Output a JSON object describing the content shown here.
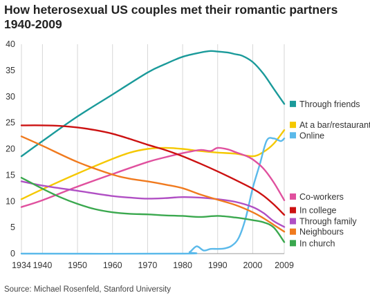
{
  "chart_data": {
    "type": "line",
    "title": "How heterosexual US couples met their romantic partners 1940-2009",
    "source": "Source: Michael Rosenfeld, Stanford University",
    "xlabel": "",
    "ylabel": "",
    "xlim": [
      1934,
      2009
    ],
    "ylim": [
      0,
      40
    ],
    "x_ticks": [
      1934,
      1940,
      1950,
      1960,
      1970,
      1980,
      1990,
      2000,
      2009
    ],
    "y_ticks": [
      0,
      5,
      10,
      15,
      20,
      25,
      30,
      35,
      40
    ],
    "grid": "vertical gridlines at x ticks",
    "legend": "right, labels beside line ends",
    "series": [
      {
        "name": "Through friends",
        "color": "#1a9a9a",
        "x": [
          1934,
          1940,
          1950,
          1960,
          1970,
          1975,
          1980,
          1985,
          1988,
          1990,
          1993,
          1995,
          1997,
          2000,
          2003,
          2006,
          2009
        ],
        "y": [
          18.6,
          21.5,
          26.2,
          30.4,
          34.6,
          36.2,
          37.6,
          38.4,
          38.7,
          38.6,
          38.4,
          38.1,
          37.8,
          36.6,
          34.4,
          31.5,
          28.6
        ]
      },
      {
        "name": "At a bar/restaurant",
        "color": "#f5c800",
        "x": [
          1934,
          1940,
          1950,
          1960,
          1965,
          1970,
          1975,
          1980,
          1985,
          1990,
          1995,
          2000,
          2003,
          2006,
          2009
        ],
        "y": [
          10.4,
          12.3,
          15.3,
          18.1,
          19.3,
          20.0,
          20.2,
          20.0,
          19.6,
          19.3,
          19.1,
          18.6,
          19.4,
          21.0,
          23.6
        ]
      },
      {
        "name": "Online",
        "color": "#5ab9ea",
        "x": [
          1934,
          1980,
          1982,
          1984,
          1986,
          1988,
          1990,
          1992,
          1994,
          1996,
          1998,
          2000,
          2002,
          2004,
          2006,
          2008,
          2009
        ],
        "y": [
          0,
          0,
          0.3,
          1.4,
          0.6,
          0.9,
          0.9,
          1.0,
          1.5,
          3.0,
          6.8,
          12.5,
          17.0,
          21.6,
          22.0,
          21.5,
          22.0
        ]
      },
      {
        "name": "Co-workers",
        "color": "#e0509e",
        "x": [
          1934,
          1940,
          1950,
          1960,
          1970,
          1975,
          1980,
          1985,
          1988,
          1990,
          1993,
          1995,
          1998,
          2000,
          2003,
          2006,
          2009
        ],
        "y": [
          8.9,
          10.2,
          12.8,
          15.2,
          17.5,
          18.4,
          19.2,
          19.8,
          19.6,
          20.2,
          19.9,
          19.4,
          18.7,
          18.0,
          16.3,
          13.6,
          10.2
        ]
      },
      {
        "name": "In college",
        "color": "#cc1111",
        "x": [
          1934,
          1940,
          1945,
          1950,
          1955,
          1960,
          1965,
          1970,
          1975,
          1980,
          1985,
          1990,
          1995,
          2000,
          2003,
          2006,
          2009
        ],
        "y": [
          24.5,
          24.5,
          24.4,
          24.1,
          23.6,
          22.9,
          21.9,
          20.8,
          19.8,
          18.6,
          17.2,
          15.7,
          14.1,
          12.4,
          11.1,
          9.4,
          7.4
        ]
      },
      {
        "name": "Through family",
        "color": "#b04fc4",
        "x": [
          1934,
          1940,
          1950,
          1960,
          1965,
          1970,
          1975,
          1980,
          1985,
          1990,
          1995,
          2000,
          2003,
          2006,
          2009
        ],
        "y": [
          13.8,
          13.0,
          12.0,
          11.0,
          10.7,
          10.5,
          10.6,
          10.8,
          10.7,
          10.4,
          9.9,
          8.9,
          7.8,
          6.2,
          5.1
        ]
      },
      {
        "name": "Neighbours",
        "color": "#f07a1e",
        "x": [
          1934,
          1940,
          1950,
          1960,
          1965,
          1970,
          1975,
          1980,
          1985,
          1990,
          1995,
          2000,
          2003,
          2006,
          2009
        ],
        "y": [
          22.4,
          20.6,
          17.5,
          15.1,
          14.3,
          13.8,
          13.2,
          12.5,
          11.3,
          10.3,
          9.3,
          7.9,
          6.8,
          5.5,
          4.2
        ]
      },
      {
        "name": "In church",
        "color": "#3aa84e",
        "x": [
          1934,
          1940,
          1945,
          1950,
          1955,
          1960,
          1965,
          1970,
          1975,
          1980,
          1985,
          1990,
          1995,
          2000,
          2003,
          2006,
          2009
        ],
        "y": [
          14.5,
          12.4,
          10.8,
          9.5,
          8.5,
          7.9,
          7.6,
          7.5,
          7.3,
          7.2,
          7.0,
          7.2,
          6.9,
          6.4,
          6.0,
          5.0,
          2.2
        ]
      }
    ],
    "labels": [
      {
        "series": "Through friends",
        "text": "Through friends",
        "y": 28.6
      },
      {
        "series": "At a bar/restaurant",
        "text": "At a bar/restaurant",
        "y": 24.6
      },
      {
        "series": "Online",
        "text": "Online",
        "y": 22.6
      },
      {
        "series": "Co-workers",
        "text": "Co-workers",
        "y": 10.9
      },
      {
        "series": "In college",
        "text": "In college",
        "y": 8.3
      },
      {
        "series": "Through family",
        "text": "Through family",
        "y": 6.2
      },
      {
        "series": "Neighbours",
        "text": "Neighbours",
        "y": 4.2
      },
      {
        "series": "In church",
        "text": "In church",
        "y": 2.0
      }
    ]
  }
}
